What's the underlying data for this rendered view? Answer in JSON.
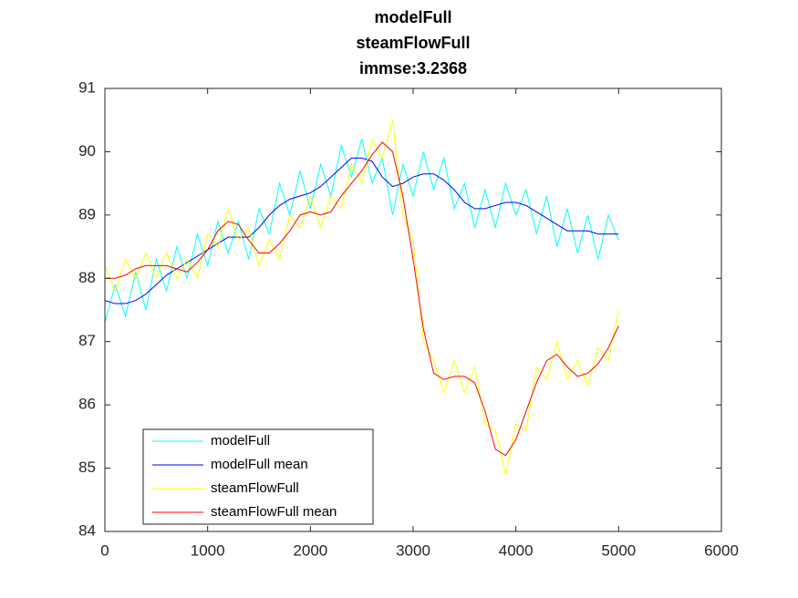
{
  "chart_data": {
    "type": "line",
    "title": [
      "modelFull",
      "steamFlowFull",
      "immse:3.2368"
    ],
    "x": [
      0,
      100,
      200,
      300,
      400,
      500,
      600,
      700,
      800,
      900,
      1000,
      1100,
      1200,
      1300,
      1400,
      1500,
      1600,
      1700,
      1800,
      1900,
      2000,
      2100,
      2200,
      2300,
      2400,
      2500,
      2600,
      2700,
      2800,
      2900,
      3000,
      3100,
      3200,
      3300,
      3400,
      3500,
      3600,
      3700,
      3800,
      3900,
      4000,
      4100,
      4200,
      4300,
      4400,
      4500,
      4600,
      4700,
      4800,
      4900,
      5000
    ],
    "series": [
      {
        "name": "modelFull",
        "color": "#00ffff",
        "values": [
          87.3,
          87.9,
          87.4,
          88.1,
          87.5,
          88.3,
          87.8,
          88.5,
          88.0,
          88.7,
          88.2,
          88.9,
          88.4,
          88.9,
          88.3,
          89.1,
          88.7,
          89.5,
          89.0,
          89.7,
          89.1,
          89.8,
          89.3,
          90.1,
          89.6,
          90.2,
          89.5,
          89.9,
          89.0,
          89.8,
          89.3,
          90.0,
          89.4,
          89.9,
          89.1,
          89.5,
          88.8,
          89.4,
          88.8,
          89.5,
          89.0,
          89.4,
          88.7,
          89.3,
          88.5,
          89.1,
          88.4,
          89.0,
          88.3,
          89.0,
          88.6
        ]
      },
      {
        "name": "modelFull mean",
        "color": "#0000ff",
        "values": [
          87.65,
          87.6,
          87.6,
          87.65,
          87.75,
          87.9,
          88.05,
          88.15,
          88.25,
          88.35,
          88.45,
          88.55,
          88.65,
          88.65,
          88.65,
          88.8,
          89.0,
          89.15,
          89.25,
          89.3,
          89.35,
          89.45,
          89.6,
          89.75,
          89.9,
          89.9,
          89.85,
          89.6,
          89.45,
          89.5,
          89.6,
          89.65,
          89.65,
          89.55,
          89.4,
          89.2,
          89.1,
          89.1,
          89.15,
          89.2,
          89.2,
          89.15,
          89.05,
          88.95,
          88.85,
          88.75,
          88.75,
          88.75,
          88.7,
          88.7,
          88.7
        ]
      },
      {
        "name": "steamFlowFull",
        "color": "#ffff00",
        "values": [
          88.2,
          87.8,
          88.3,
          88.0,
          88.4,
          88.0,
          88.4,
          88.0,
          88.3,
          88.0,
          88.7,
          88.5,
          89.1,
          88.6,
          88.8,
          88.2,
          88.6,
          88.3,
          89.0,
          88.8,
          89.3,
          88.8,
          89.3,
          89.1,
          89.8,
          89.5,
          90.2,
          89.9,
          90.5,
          89.0,
          88.6,
          87.0,
          86.7,
          86.2,
          86.7,
          86.2,
          86.6,
          85.7,
          85.6,
          84.9,
          85.7,
          85.6,
          86.6,
          86.4,
          87.0,
          86.4,
          86.7,
          86.3,
          86.9,
          86.7,
          87.5
        ]
      },
      {
        "name": "steamFlowFull mean",
        "color": "#ff0000",
        "values": [
          88.0,
          88.0,
          88.05,
          88.15,
          88.2,
          88.2,
          88.2,
          88.15,
          88.1,
          88.25,
          88.45,
          88.75,
          88.9,
          88.85,
          88.6,
          88.4,
          88.4,
          88.55,
          88.75,
          89.0,
          89.05,
          89.0,
          89.05,
          89.3,
          89.5,
          89.7,
          89.95,
          90.15,
          90.0,
          89.3,
          88.3,
          87.2,
          86.5,
          86.4,
          86.45,
          86.45,
          86.35,
          85.9,
          85.3,
          85.2,
          85.45,
          85.9,
          86.35,
          86.7,
          86.8,
          86.6,
          86.45,
          86.5,
          86.65,
          86.9,
          87.25
        ]
      }
    ],
    "xlim": [
      0,
      6000
    ],
    "xticks": [
      0,
      1000,
      2000,
      3000,
      4000,
      5000,
      6000
    ],
    "ylim": [
      84,
      91
    ],
    "yticks": [
      84,
      85,
      86,
      87,
      88,
      89,
      90,
      91
    ],
    "grid": false,
    "legend": "southwest"
  }
}
